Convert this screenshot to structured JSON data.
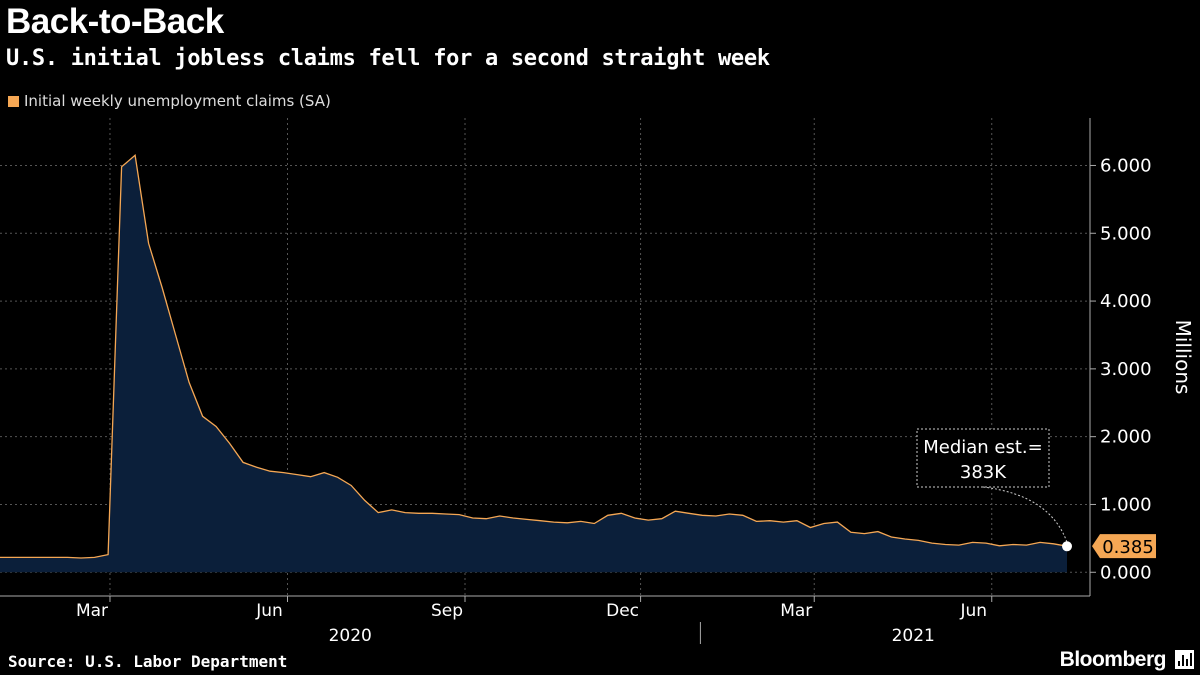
{
  "header": {
    "title": "Back-to-Back",
    "subtitle": "U.S. initial jobless claims fell for a second straight week"
  },
  "footer": {
    "source": "Source: U.S. Labor Department",
    "brand": "Bloomberg",
    "brand_icon": "bloomberg-terminal-icon"
  },
  "colors": {
    "background": "#000000",
    "series_line": "#f5a754",
    "series_fill": "#0b1f3a",
    "grid": "#555555",
    "label_badge": "#f5a754"
  },
  "chart_data": {
    "type": "area",
    "title": "Back-to-Back",
    "subtitle": "U.S. initial jobless claims fell for a second straight week",
    "ylabel": "Millions",
    "xlabel": "",
    "ylim": [
      -0.35,
      6.7
    ],
    "yticks": [
      "6.000",
      "5.000",
      "4.000",
      "3.000",
      "2.000",
      "1.000",
      "0.000"
    ],
    "ytick_values": [
      6,
      5,
      4,
      3,
      2,
      1,
      0
    ],
    "xtick_labels": [
      "Mar",
      "Jun",
      "Sep",
      "Dec",
      "Mar",
      "Jun"
    ],
    "xtick_months": [
      2,
      5,
      8,
      11,
      14,
      17
    ],
    "year_labels": [
      "2020",
      "2021"
    ],
    "grid": true,
    "legend_position": "top-left",
    "series": [
      {
        "name": "Initial weekly unemployment claims (SA)",
        "start": "2020-01-04",
        "interval_days": 7,
        "values": [
          0.22,
          0.22,
          0.22,
          0.22,
          0.22,
          0.22,
          0.21,
          0.22,
          0.26,
          5.98,
          6.15,
          4.85,
          4.2,
          3.5,
          2.8,
          2.3,
          2.15,
          1.9,
          1.62,
          1.55,
          1.49,
          1.47,
          1.44,
          1.41,
          1.47,
          1.4,
          1.28,
          1.06,
          0.88,
          0.92,
          0.88,
          0.87,
          0.87,
          0.86,
          0.85,
          0.8,
          0.79,
          0.83,
          0.8,
          0.78,
          0.76,
          0.74,
          0.73,
          0.75,
          0.72,
          0.84,
          0.87,
          0.8,
          0.77,
          0.79,
          0.9,
          0.87,
          0.84,
          0.83,
          0.86,
          0.84,
          0.75,
          0.76,
          0.74,
          0.76,
          0.66,
          0.72,
          0.74,
          0.59,
          0.57,
          0.6,
          0.52,
          0.49,
          0.47,
          0.43,
          0.41,
          0.4,
          0.44,
          0.43,
          0.39,
          0.41,
          0.4,
          0.44,
          0.42,
          0.385
        ]
      }
    ],
    "last_value_label": "0.385",
    "annotation": {
      "text_line1": "Median est.=",
      "text_line2": "383K",
      "value": 0.383
    }
  }
}
